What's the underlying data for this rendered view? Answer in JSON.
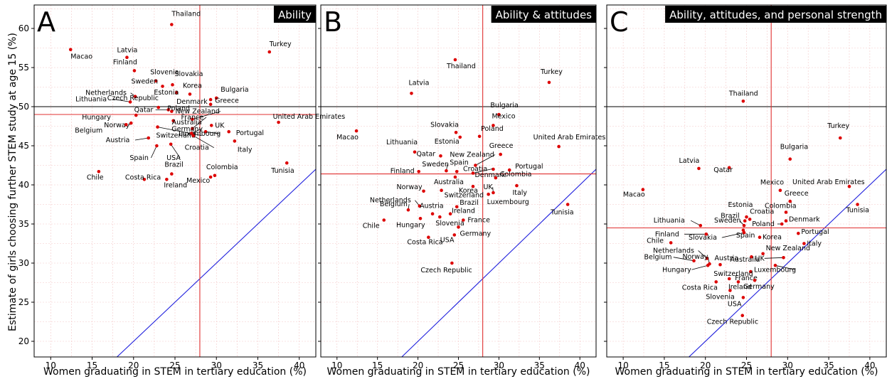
{
  "figure": {
    "ylabel": "Estimate of girls choosing further STEM study at age 15 (%)"
  },
  "chart_data": [
    {
      "type": "scatter",
      "letter": "A",
      "title": "Ability",
      "xlabel": "Women graduating in STEM in tertiary education (%)",
      "ylabel": "Estimate of girls choosing further STEM study at age 15 (%)",
      "xlim": [
        8,
        42
      ],
      "ylim": [
        18,
        63
      ],
      "xticks": [
        10,
        15,
        20,
        25,
        30,
        35,
        40
      ],
      "yticks": [
        20,
        25,
        30,
        35,
        40,
        45,
        50,
        55,
        60
      ],
      "hline_black": 50,
      "hline_red": 49,
      "vline_red": 28,
      "diagonal": true,
      "grid": true,
      "points": [
        {
          "name": "Thailand",
          "x": 24.6,
          "y": 60.5
        },
        {
          "name": "Macao",
          "x": 12.4,
          "y": 57.3
        },
        {
          "name": "Turkey",
          "x": 36.4,
          "y": 57.0
        },
        {
          "name": "Latvia",
          "x": 19.2,
          "y": 56.3
        },
        {
          "name": "Finland",
          "x": 20.1,
          "y": 54.6
        },
        {
          "name": "Slovenia",
          "x": 22.7,
          "y": 53.3
        },
        {
          "name": "Slovakia",
          "x": 24.7,
          "y": 52.8
        },
        {
          "name": "Sweden",
          "x": 23.5,
          "y": 52.6
        },
        {
          "name": "Estonia",
          "x": 25.2,
          "y": 51.8
        },
        {
          "name": "Korea",
          "x": 26.8,
          "y": 51.6
        },
        {
          "name": "Bulgaria",
          "x": 30.0,
          "y": 51.1
        },
        {
          "name": "Denmark",
          "x": 29.3,
          "y": 50.9
        },
        {
          "name": "Netherlands",
          "x": 20.2,
          "y": 51.3
        },
        {
          "name": "Lithuania",
          "x": 19.6,
          "y": 50.6
        },
        {
          "name": "Greece",
          "x": 29.3,
          "y": 50.3
        },
        {
          "name": "Czech Republic",
          "x": 23.0,
          "y": 49.9
        },
        {
          "name": "Qatar",
          "x": 24.2,
          "y": 49.6
        },
        {
          "name": "Poland",
          "x": 24.6,
          "y": 49.4
        },
        {
          "name": "Hungary",
          "x": 20.3,
          "y": 48.9
        },
        {
          "name": "New Zealand",
          "x": 27.1,
          "y": 48.4
        },
        {
          "name": "United Arab Emirates",
          "x": 37.5,
          "y": 48.0
        },
        {
          "name": "Norway",
          "x": 19.7,
          "y": 47.9
        },
        {
          "name": "Australia",
          "x": 24.8,
          "y": 48.2
        },
        {
          "name": "Belgium",
          "x": 19.1,
          "y": 47.7
        },
        {
          "name": "Switzerland",
          "x": 22.9,
          "y": 47.4
        },
        {
          "name": "France",
          "x": 27.1,
          "y": 47.2
        },
        {
          "name": "UK",
          "x": 29.4,
          "y": 47.6
        },
        {
          "name": "Portugal",
          "x": 31.5,
          "y": 46.8
        },
        {
          "name": "Luxembourg",
          "x": 28.7,
          "y": 46.8
        },
        {
          "name": "Germany",
          "x": 27.0,
          "y": 46.6
        },
        {
          "name": "Austria",
          "x": 21.8,
          "y": 46.0
        },
        {
          "name": "Italy",
          "x": 32.2,
          "y": 45.6
        },
        {
          "name": "Spain",
          "x": 22.8,
          "y": 45.0
        },
        {
          "name": "USA",
          "x": 24.5,
          "y": 45.2
        },
        {
          "name": "Croatia",
          "x": 27.2,
          "y": 46.3
        },
        {
          "name": "Tunisia",
          "x": 38.5,
          "y": 42.8
        },
        {
          "name": "Chile",
          "x": 15.8,
          "y": 41.7
        },
        {
          "name": "Costa Rica",
          "x": 21.3,
          "y": 40.7
        },
        {
          "name": "Brazil",
          "x": 24.6,
          "y": 41.4
        },
        {
          "name": "Ireland",
          "x": 24.0,
          "y": 40.7
        },
        {
          "name": "Colombia",
          "x": 29.8,
          "y": 41.2
        },
        {
          "name": "Mexico",
          "x": 29.3,
          "y": 41.0
        }
      ]
    },
    {
      "type": "scatter",
      "letter": "B",
      "title": "Ability & attitudes",
      "xlabel": "Women graduating in STEM in tertiary education (%)",
      "xlim": [
        8,
        42
      ],
      "ylim": [
        18,
        63
      ],
      "xticks": [
        10,
        15,
        20,
        25,
        30,
        35,
        40
      ],
      "yticks": [
        20,
        25,
        30,
        35,
        40,
        45,
        50,
        55,
        60
      ],
      "hline_black": 50,
      "hline_red": 41.4,
      "vline_red": 28,
      "diagonal": true,
      "grid": true,
      "points": [
        {
          "name": "Thailand",
          "x": 24.6,
          "y": 56.0
        },
        {
          "name": "Turkey",
          "x": 36.2,
          "y": 53.1
        },
        {
          "name": "Latvia",
          "x": 19.2,
          "y": 51.7
        },
        {
          "name": "Bulgaria",
          "x": 30.0,
          "y": 49.0
        },
        {
          "name": "Mexico",
          "x": 29.3,
          "y": 47.6
        },
        {
          "name": "Macao",
          "x": 12.4,
          "y": 46.9
        },
        {
          "name": "Slovakia",
          "x": 24.7,
          "y": 46.7
        },
        {
          "name": "Poland",
          "x": 27.6,
          "y": 46.2
        },
        {
          "name": "Estonia",
          "x": 25.2,
          "y": 46.1
        },
        {
          "name": "United Arab Emirates",
          "x": 37.4,
          "y": 44.9
        },
        {
          "name": "Lithuania",
          "x": 19.6,
          "y": 44.2
        },
        {
          "name": "Greece",
          "x": 30.2,
          "y": 43.9
        },
        {
          "name": "Qatar",
          "x": 22.8,
          "y": 43.7
        },
        {
          "name": "New Zealand",
          "x": 27.1,
          "y": 42.5
        },
        {
          "name": "Denmark",
          "x": 29.3,
          "y": 42.0
        },
        {
          "name": "Portugal",
          "x": 31.3,
          "y": 41.9
        },
        {
          "name": "Spain",
          "x": 24.8,
          "y": 41.7
        },
        {
          "name": "Sweden",
          "x": 23.5,
          "y": 41.8
        },
        {
          "name": "Finland",
          "x": 20.1,
          "y": 41.7
        },
        {
          "name": "Croatia",
          "x": 26.8,
          "y": 41.5
        },
        {
          "name": "Colombia",
          "x": 29.6,
          "y": 40.9
        },
        {
          "name": "Australia",
          "x": 24.6,
          "y": 41.0
        },
        {
          "name": "Korea",
          "x": 26.8,
          "y": 39.8
        },
        {
          "name": "UK",
          "x": 29.3,
          "y": 39.0
        },
        {
          "name": "Italy",
          "x": 32.2,
          "y": 39.9
        },
        {
          "name": "Norway",
          "x": 20.7,
          "y": 39.2
        },
        {
          "name": "Luxembourg",
          "x": 28.7,
          "y": 38.8
        },
        {
          "name": "Switzerland",
          "x": 22.9,
          "y": 39.3
        },
        {
          "name": "Tunisia",
          "x": 38.5,
          "y": 37.5
        },
        {
          "name": "Netherlands",
          "x": 20.2,
          "y": 37.3
        },
        {
          "name": "Brazil",
          "x": 24.8,
          "y": 37.2
        },
        {
          "name": "Austria",
          "x": 21.8,
          "y": 36.3
        },
        {
          "name": "Ireland",
          "x": 24.0,
          "y": 36.3
        },
        {
          "name": "Belgium",
          "x": 18.8,
          "y": 36.8
        },
        {
          "name": "Chile",
          "x": 15.8,
          "y": 35.5
        },
        {
          "name": "Hungary",
          "x": 20.3,
          "y": 35.7
        },
        {
          "name": "Slovenia",
          "x": 22.7,
          "y": 35.9
        },
        {
          "name": "France",
          "x": 25.6,
          "y": 35.5
        },
        {
          "name": "Germany",
          "x": 25.0,
          "y": 34.6
        },
        {
          "name": "USA",
          "x": 24.5,
          "y": 33.6
        },
        {
          "name": "Costa Rica",
          "x": 21.3,
          "y": 33.3
        },
        {
          "name": "Czech Republic",
          "x": 24.2,
          "y": 30.0
        }
      ]
    },
    {
      "type": "scatter",
      "letter": "C",
      "title": "Ability, attitudes, and personal strength",
      "xlabel": "Women graduating in STEM in tertiary education (%)",
      "xlim": [
        8,
        42
      ],
      "ylim": [
        18,
        63
      ],
      "xticks": [
        10,
        15,
        20,
        25,
        30,
        35,
        40
      ],
      "yticks": [
        20,
        25,
        30,
        35,
        40,
        45,
        50,
        55,
        60
      ],
      "hline_black": 50,
      "hline_red": 34.5,
      "vline_red": 28,
      "diagonal": true,
      "grid": true,
      "points": [
        {
          "name": "Thailand",
          "x": 24.6,
          "y": 50.7
        },
        {
          "name": "Turkey",
          "x": 36.4,
          "y": 46.0
        },
        {
          "name": "Bulgaria",
          "x": 30.3,
          "y": 43.3
        },
        {
          "name": "Latvia",
          "x": 19.2,
          "y": 42.1
        },
        {
          "name": "Qatar",
          "x": 22.9,
          "y": 42.2
        },
        {
          "name": "United Arab Emirates",
          "x": 37.5,
          "y": 39.8
        },
        {
          "name": "Macao",
          "x": 12.4,
          "y": 39.4
        },
        {
          "name": "Mexico",
          "x": 29.1,
          "y": 39.3
        },
        {
          "name": "Greece",
          "x": 30.3,
          "y": 37.9
        },
        {
          "name": "Tunisia",
          "x": 38.5,
          "y": 37.5
        },
        {
          "name": "Colombia",
          "x": 29.8,
          "y": 36.5
        },
        {
          "name": "Estonia",
          "x": 25.0,
          "y": 35.9
        },
        {
          "name": "Croatia",
          "x": 25.4,
          "y": 35.6
        },
        {
          "name": "Denmark",
          "x": 29.8,
          "y": 35.4
        },
        {
          "name": "Brazil",
          "x": 24.8,
          "y": 35.4
        },
        {
          "name": "Lithuania",
          "x": 19.4,
          "y": 34.8
        },
        {
          "name": "Sweden",
          "x": 24.7,
          "y": 34.8
        },
        {
          "name": "Poland",
          "x": 29.3,
          "y": 35.0
        },
        {
          "name": "Spain",
          "x": 24.6,
          "y": 34.2
        },
        {
          "name": "Portugal",
          "x": 31.3,
          "y": 33.8
        },
        {
          "name": "Slovakia",
          "x": 24.7,
          "y": 33.9
        },
        {
          "name": "Finland",
          "x": 20.1,
          "y": 33.7
        },
        {
          "name": "Korea",
          "x": 26.6,
          "y": 33.3
        },
        {
          "name": "Chile",
          "x": 15.8,
          "y": 32.6
        },
        {
          "name": "Italy",
          "x": 32.0,
          "y": 32.5
        },
        {
          "name": "Netherlands",
          "x": 20.2,
          "y": 30.6
        },
        {
          "name": "New Zealand",
          "x": 27.0,
          "y": 31.2
        },
        {
          "name": "Australia",
          "x": 25.6,
          "y": 30.8
        },
        {
          "name": "Norway",
          "x": 20.5,
          "y": 29.9
        },
        {
          "name": "Austria",
          "x": 21.8,
          "y": 29.8
        },
        {
          "name": "UK",
          "x": 29.5,
          "y": 30.7
        },
        {
          "name": "Belgium",
          "x": 18.6,
          "y": 30.3
        },
        {
          "name": "Hungary",
          "x": 20.3,
          "y": 29.7
        },
        {
          "name": "Luxembourg",
          "x": 28.5,
          "y": 29.7
        },
        {
          "name": "France",
          "x": 25.5,
          "y": 28.9
        },
        {
          "name": "Switzerland",
          "x": 22.9,
          "y": 28.0
        },
        {
          "name": "Germany",
          "x": 26.0,
          "y": 27.8
        },
        {
          "name": "Costa Rica",
          "x": 21.3,
          "y": 27.6
        },
        {
          "name": "Ireland",
          "x": 24.0,
          "y": 27.6
        },
        {
          "name": "USA",
          "x": 24.6,
          "y": 25.6
        },
        {
          "name": "Slovenia",
          "x": 23.0,
          "y": 26.5
        },
        {
          "name": "Czech Republic",
          "x": 24.5,
          "y": 23.3
        }
      ]
    }
  ]
}
